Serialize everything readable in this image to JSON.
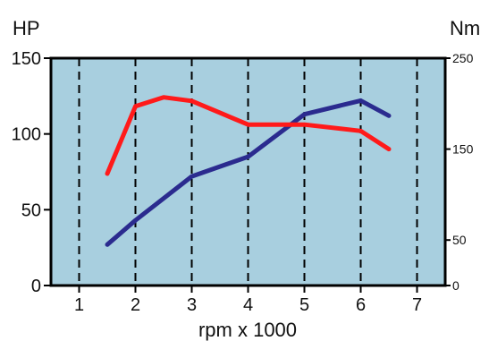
{
  "chart_data": {
    "type": "line",
    "title": "",
    "xlabel": "rpm x 1000",
    "ylabel_left": "HP",
    "ylabel_right": "Nm",
    "xlim": [
      0.5,
      7.5
    ],
    "ylim_left": [
      0,
      150
    ],
    "ylim_right": [
      0,
      250
    ],
    "x_ticks": [
      "1",
      "2",
      "3",
      "4",
      "5",
      "6",
      "7"
    ],
    "y_ticks_left": [
      "0",
      "50",
      "100",
      "150"
    ],
    "y_ticks_right": [
      "0",
      "50",
      "150",
      "250"
    ],
    "grid": "vertical-dashed",
    "plot_background": "#a8cfdf",
    "series": [
      {
        "axis": "left",
        "color": "#2b2b8f",
        "x": [
          1.5,
          2.0,
          3.0,
          4.0,
          5.0,
          6.0,
          6.5
        ],
        "y": [
          27,
          43,
          72,
          85,
          113,
          122,
          112
        ]
      },
      {
        "axis": "right",
        "color": "#ff1a1a",
        "x": [
          1.5,
          2.0,
          2.5,
          3.0,
          4.0,
          5.0,
          6.0,
          6.5
        ],
        "y": [
          123,
          197,
          207,
          203,
          177,
          177,
          170,
          150
        ]
      }
    ]
  }
}
